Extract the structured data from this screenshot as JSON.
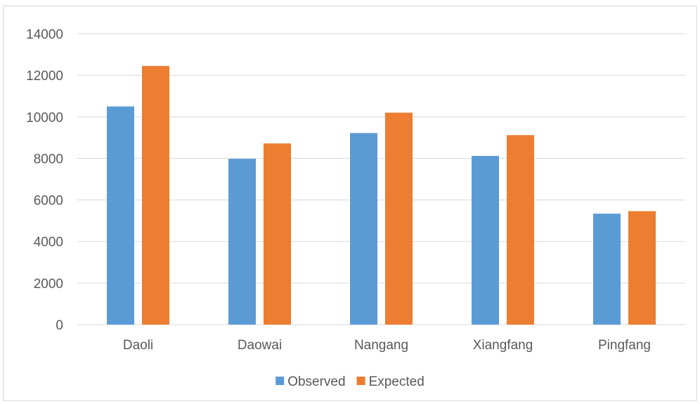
{
  "chart_data": {
    "type": "bar",
    "title": "",
    "xlabel": "",
    "ylabel": "",
    "categories": [
      "Daoli",
      "Daowai",
      "Nangang",
      "Xiangfang",
      "Pingfang"
    ],
    "series": [
      {
        "name": "Observed",
        "color": "#5b9bd5",
        "values": [
          10500,
          7980,
          9220,
          8120,
          5340
        ]
      },
      {
        "name": "Expected",
        "color": "#ed7d31",
        "values": [
          12450,
          8720,
          10200,
          9120,
          5460
        ]
      }
    ],
    "ylim": [
      0,
      14000
    ],
    "yticks": [
      "0",
      "2000",
      "4000",
      "6000",
      "8000",
      "10000",
      "12000",
      "14000"
    ],
    "grid": true,
    "legend_position": "bottom"
  }
}
